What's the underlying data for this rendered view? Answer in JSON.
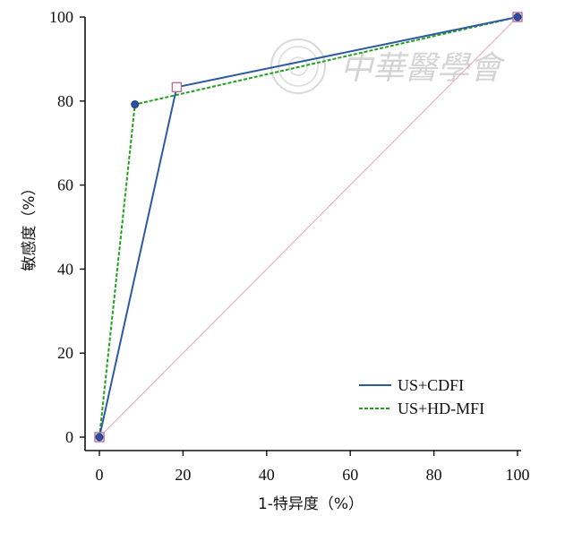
{
  "chart_data": {
    "type": "line",
    "title": "",
    "xlabel": "1-特异度（%）",
    "ylabel": "敏感度（%）",
    "xlim": [
      0,
      100
    ],
    "ylim": [
      0,
      100
    ],
    "x_ticks": [
      0,
      20,
      40,
      60,
      80,
      100
    ],
    "y_ticks": [
      0,
      20,
      40,
      60,
      80,
      100
    ],
    "grid": false,
    "legend_position": "bottom-right",
    "series": [
      {
        "name": "US+CDFI",
        "x": [
          0,
          18.5,
          100
        ],
        "y": [
          0,
          83.3,
          100
        ],
        "color": "#2e5aa0",
        "style": "solid",
        "marker": "square"
      },
      {
        "name": "US+HD-MFI",
        "x": [
          0,
          8.5,
          100
        ],
        "y": [
          0,
          79.2,
          100
        ],
        "color": "#22a01e",
        "style": "dashed",
        "marker": "circle"
      },
      {
        "name": "",
        "x": [
          0,
          100
        ],
        "y": [
          0,
          100
        ],
        "color": "#e8a7b3",
        "style": "solid",
        "marker": "none"
      }
    ]
  },
  "watermark": {
    "text": "中華醫學會",
    "color": "#d4d4d4"
  }
}
